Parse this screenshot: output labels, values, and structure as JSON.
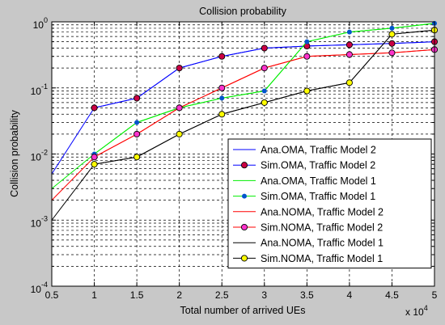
{
  "chart_data": {
    "type": "line",
    "title": "Collision probability",
    "xlabel": "Total number of arrived UEs",
    "ylabel": "Collision probability",
    "x_multiplier": "x 10",
    "x_multiplier_exp": "4",
    "xlim": [
      0.5,
      5
    ],
    "ylim": [
      0.0001,
      1
    ],
    "yscale": "log",
    "grid": true,
    "legend": "bottom-right",
    "x": [
      0.5,
      1,
      1.5,
      2,
      2.5,
      3,
      3.5,
      4,
      4.5,
      5
    ],
    "x_tick_labels": [
      "0.5",
      "1",
      "1.5",
      "2",
      "2.5",
      "3",
      "3.5",
      "4",
      "4.5",
      "5"
    ],
    "y_ticks": [
      {
        "value": 0.0001,
        "base": "10",
        "exp": "-4"
      },
      {
        "value": 0.001,
        "base": "10",
        "exp": "-3"
      },
      {
        "value": 0.01,
        "base": "10",
        "exp": "-2"
      },
      {
        "value": 0.1,
        "base": "10",
        "exp": "-1"
      },
      {
        "value": 1,
        "base": "10",
        "exp": "0"
      }
    ],
    "series": [
      {
        "name": "Ana.OMA, Traffic Model 2",
        "color": "#0000ff",
        "marker": "none",
        "values": [
          0.005,
          0.05,
          0.07,
          0.2,
          0.3,
          0.4,
          0.43,
          0.45,
          0.47,
          0.5
        ]
      },
      {
        "name": "Sim.OMA, Traffic Model 2",
        "color": "#0000ff",
        "marker": "circle",
        "marker_fill": "#cc0044",
        "values": [
          null,
          0.05,
          0.07,
          0.2,
          0.3,
          0.4,
          0.43,
          0.45,
          0.47,
          0.5
        ]
      },
      {
        "name": "Ana.OMA, Traffic Model 1",
        "color": "#00ee00",
        "marker": "none",
        "values": [
          0.003,
          0.01,
          0.03,
          0.05,
          0.07,
          0.09,
          0.5,
          0.7,
          0.8,
          0.95
        ]
      },
      {
        "name": "Sim.OMA, Traffic Model 1",
        "color": "#00ee00",
        "marker": "dot",
        "marker_fill": "#0055cc",
        "values": [
          null,
          0.01,
          0.03,
          0.05,
          0.07,
          0.09,
          0.5,
          0.7,
          0.8,
          0.95
        ]
      },
      {
        "name": "Ana.NOMA, Traffic Model 2",
        "color": "#ff0000",
        "marker": "none",
        "values": [
          0.002,
          0.009,
          0.02,
          0.05,
          0.1,
          0.2,
          0.3,
          0.32,
          0.34,
          0.38
        ]
      },
      {
        "name": "Sim.NOMA, Traffic Model 2",
        "color": "#ff0000",
        "marker": "circle",
        "marker_fill": "#ff33cc",
        "values": [
          null,
          0.009,
          0.02,
          0.05,
          0.1,
          0.2,
          0.3,
          0.32,
          0.34,
          0.38
        ]
      },
      {
        "name": "Ana.NOMA, Traffic Model 1",
        "color": "#000000",
        "marker": "none",
        "values": [
          0.001,
          0.007,
          0.009,
          0.02,
          0.04,
          0.06,
          0.09,
          0.12,
          0.65,
          0.75
        ]
      },
      {
        "name": "Sim.NOMA, Traffic Model 1",
        "color": "#000000",
        "marker": "circle",
        "marker_fill": "#ffff00",
        "values": [
          null,
          0.007,
          0.009,
          0.02,
          0.04,
          0.06,
          0.09,
          0.12,
          0.65,
          0.75
        ]
      }
    ]
  }
}
